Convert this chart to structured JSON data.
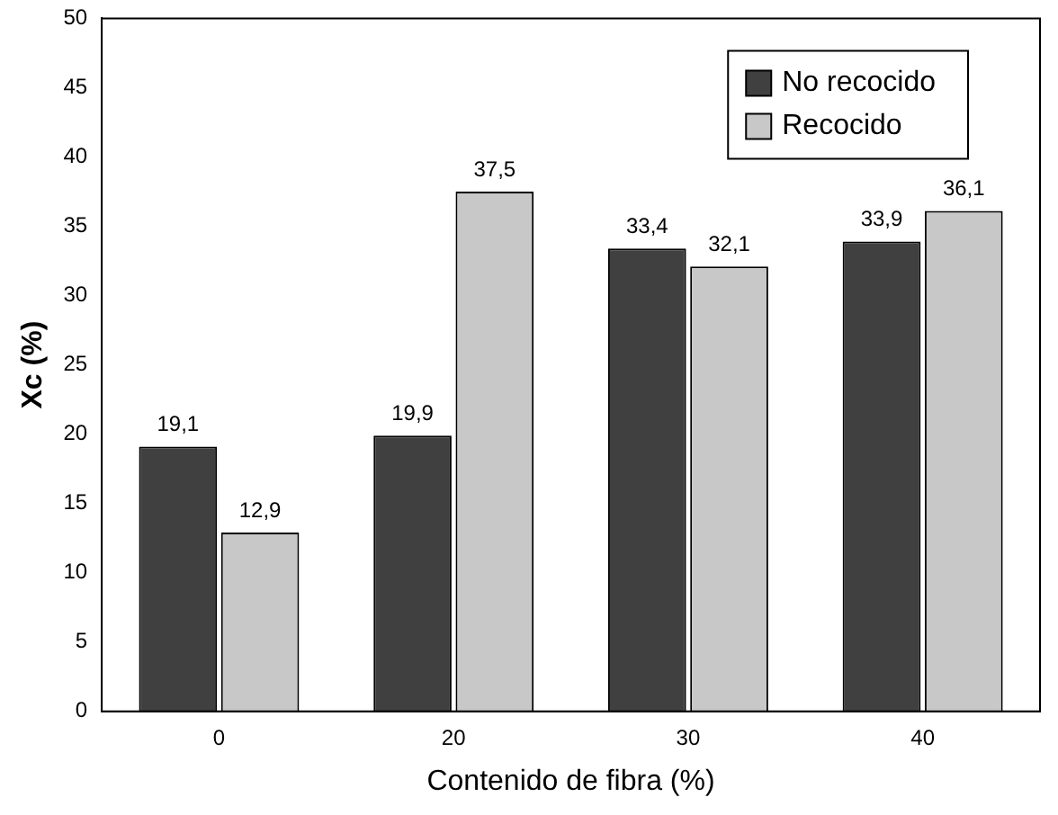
{
  "chart_data": {
    "type": "bar",
    "xlabel": "Contenido de fibra (%)",
    "ylabel": "Xc (%)",
    "categories": [
      "0",
      "20",
      "30",
      "40"
    ],
    "series": [
      {
        "name": "No recocido",
        "color": "#404040",
        "values": [
          19.1,
          19.9,
          33.4,
          33.9
        ],
        "value_labels": [
          "19,1",
          "19,9",
          "33,4",
          "33,9"
        ]
      },
      {
        "name": "Recocido",
        "color": "#c8c8c8",
        "values": [
          12.9,
          37.5,
          32.1,
          36.1
        ],
        "value_labels": [
          "12,9",
          "37,5",
          "32,1",
          "36,1"
        ]
      }
    ],
    "ylim": [
      0,
      50
    ],
    "yticks": [
      0,
      5,
      10,
      15,
      20,
      25,
      30,
      35,
      40,
      45,
      50
    ],
    "grid": false,
    "legend": "top right"
  }
}
